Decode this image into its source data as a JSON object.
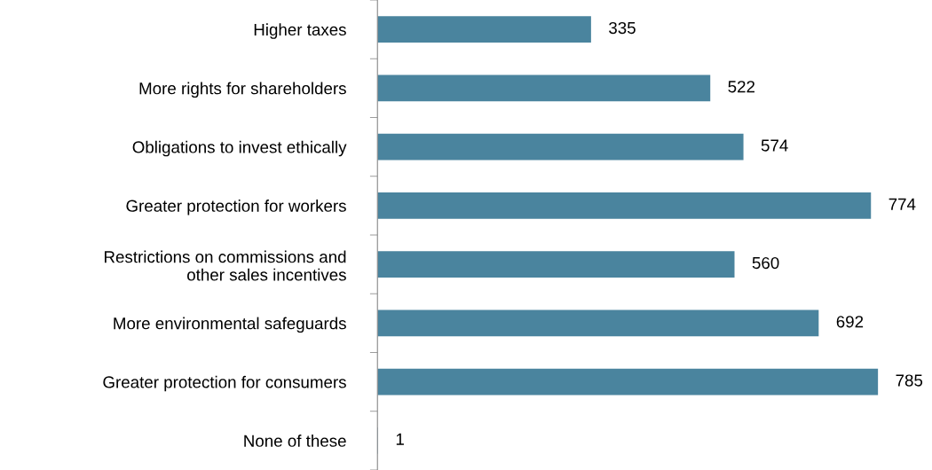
{
  "chart_data": {
    "type": "bar",
    "orientation": "horizontal",
    "categories": [
      "Higher taxes",
      "More rights for shareholders",
      "Obligations to invest ethically",
      "Greater protection for workers",
      "Restrictions on commissions and\nother sales incentives",
      "More environmental safeguards",
      "Greater protection for consumers",
      "None of these"
    ],
    "values": [
      335,
      522,
      574,
      774,
      560,
      692,
      785,
      1
    ],
    "color": "#4a849e",
    "data_labels": true,
    "grid": false,
    "legend": false
  }
}
